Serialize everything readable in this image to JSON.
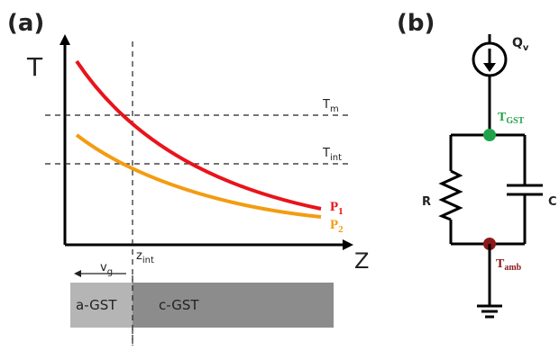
{
  "panel_a": {
    "label": "(a)",
    "y_axis_label": "T",
    "x_axis_label": "Z",
    "tm": {
      "main": "T",
      "sub": "m"
    },
    "tint": {
      "main": "T",
      "sub": "int"
    },
    "zint": {
      "main": "z",
      "sub": "int"
    },
    "vg": {
      "main": "v",
      "sub": "g"
    },
    "p1": {
      "main": "P",
      "sub": "1",
      "color": "#e8141b"
    },
    "p2": {
      "main": "P",
      "sub": "2",
      "color": "#f39c12"
    },
    "amorphous_label": "a-GST",
    "crystalline_label": "c-GST",
    "colors": {
      "amorphous": "#b5b5b5",
      "crystalline": "#8c8c8c"
    }
  },
  "panel_b": {
    "label": "(b)",
    "source": {
      "main": "Q",
      "sub": "v"
    },
    "node_top": {
      "main": "T",
      "sub": "GST",
      "color": "#1fa34a"
    },
    "node_bottom": {
      "main": "T",
      "sub": "amb",
      "color": "#8b1a1a"
    },
    "resistor_label": "R",
    "capacitor_label": "C"
  }
}
